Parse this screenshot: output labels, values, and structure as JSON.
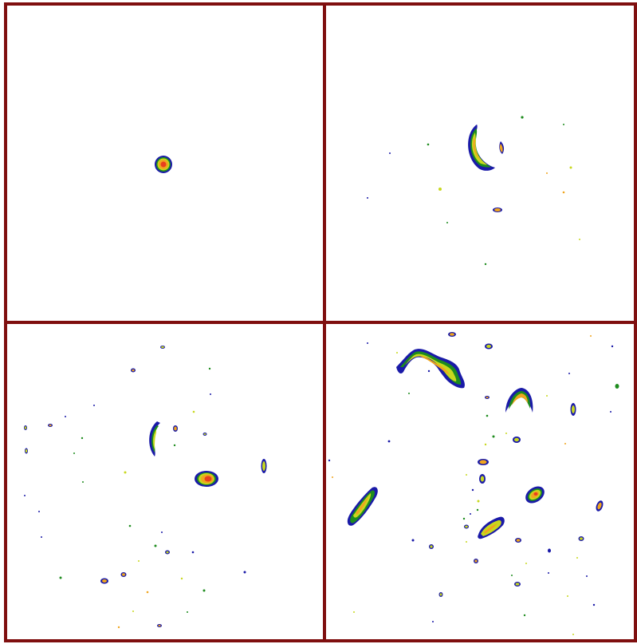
{
  "figure": {
    "frame_color": "#7f0f0f",
    "panel_background": "#ffffff",
    "colormap": [
      "#1a1aa8",
      "#1e8c1e",
      "#c8d81e",
      "#f0a51e",
      "#e8401e"
    ]
  },
  "panels": [
    {
      "id": "top-left",
      "description_name": "single-source-blob",
      "blob_count": 1
    },
    {
      "id": "top-right",
      "description_name": "arc-and-specks",
      "blob_count": 14
    },
    {
      "id": "bottom-left",
      "description_name": "scattered-arcs",
      "blob_count": 40
    },
    {
      "id": "bottom-right",
      "description_name": "many-arcs-and-blobs",
      "blob_count": 55
    }
  ]
}
